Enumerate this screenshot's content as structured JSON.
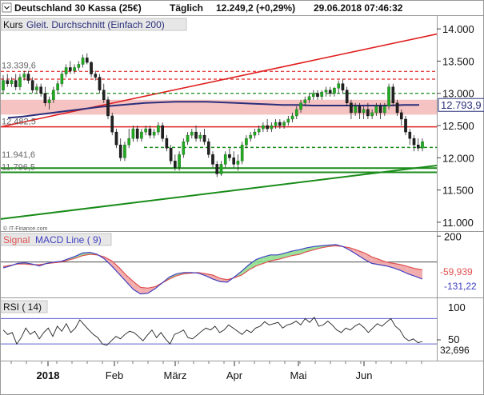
{
  "header": {
    "instrument": "Deutschland 30 Kassa (25€)",
    "interval": "Täglich",
    "quote": "12.249,2 (+0,29%)",
    "datetime": "29.06.2018 07:46:32"
  },
  "legend": {
    "kurs": "Kurs",
    "ma": "Gleit. Durchschnitt (Einfach 200)"
  },
  "watermark": "© IT-Finance.com",
  "colors": {
    "candle_up": "#22aa22",
    "candle_down": "#222222",
    "ma_line": "#2b2f7a",
    "red": "#e02020",
    "green": "#1a8c1a",
    "resistance_band": "#f5b8b8",
    "macd_signal": "#e05050",
    "macd_line": "#4040c0",
    "rsi_line": "#222222",
    "rsi_levels": "#6060d0"
  },
  "chart_data": [
    {
      "type": "candlestick",
      "title": "Deutschland 30 Kassa (25€)",
      "x_labels": [
        "2018",
        "Feb",
        "März",
        "Apr",
        "Mai",
        "Jun"
      ],
      "y_ticks": [
        "14.000",
        "13.500",
        "13.000",
        "12.500",
        "12.000",
        "11.500",
        "11.000"
      ],
      "ylim": [
        10.9,
        14.2
      ],
      "y_unit_note": "thousands of points",
      "moving_average_label": "Gleit. Durchschnitt (Einfach 200)",
      "ma_value_label": "12.793,9",
      "level_labels": [
        "13.339,6",
        "12.482,5",
        "11.941,6",
        "11.796,5"
      ],
      "horizontal_levels": {
        "red_solid": [
          12.48,
          11.8
        ],
        "red_dashed": [
          13.34,
          13.22
        ],
        "green_dashed": [
          13.0,
          12.16
        ],
        "green_solid": [
          11.84,
          11.8
        ],
        "resistance_band": [
          12.67,
          12.9
        ]
      },
      "trendlines": {
        "red_up": [
          [
            0,
            12.48
          ],
          [
            105,
            13.92
          ]
        ],
        "green_up": [
          [
            0,
            11.05
          ],
          [
            105,
            11.88
          ]
        ]
      },
      "candles": [
        {
          "o": 13.05,
          "h": 13.28,
          "c": 13.2,
          "l": 13.0
        },
        {
          "o": 13.2,
          "h": 13.3,
          "c": 13.15,
          "l": 13.1
        },
        {
          "o": 13.15,
          "h": 13.25,
          "c": 13.2,
          "l": 13.1
        },
        {
          "o": 13.2,
          "h": 13.3,
          "c": 13.1,
          "l": 13.05
        },
        {
          "o": 13.1,
          "h": 13.3,
          "c": 13.25,
          "l": 13.05
        },
        {
          "o": 13.25,
          "h": 13.35,
          "c": 13.3,
          "l": 13.2
        },
        {
          "o": 13.3,
          "h": 13.35,
          "c": 13.2,
          "l": 13.15
        },
        {
          "o": 13.2,
          "h": 13.25,
          "c": 13.05,
          "l": 13.0
        },
        {
          "o": 13.05,
          "h": 13.15,
          "c": 13.1,
          "l": 13.0
        },
        {
          "o": 13.1,
          "h": 13.15,
          "c": 13.0,
          "l": 12.95
        },
        {
          "o": 13.0,
          "h": 13.1,
          "c": 12.85,
          "l": 12.8
        },
        {
          "o": 12.85,
          "h": 12.95,
          "c": 12.9,
          "l": 12.75
        },
        {
          "o": 12.9,
          "h": 13.1,
          "c": 13.05,
          "l": 12.85
        },
        {
          "o": 13.05,
          "h": 13.2,
          "c": 13.15,
          "l": 13.0
        },
        {
          "o": 13.15,
          "h": 13.35,
          "c": 13.3,
          "l": 13.1
        },
        {
          "o": 13.3,
          "h": 13.45,
          "c": 13.4,
          "l": 13.25
        },
        {
          "o": 13.4,
          "h": 13.5,
          "c": 13.35,
          "l": 13.3
        },
        {
          "o": 13.35,
          "h": 13.45,
          "c": 13.4,
          "l": 13.3
        },
        {
          "o": 13.4,
          "h": 13.5,
          "c": 13.45,
          "l": 13.35
        },
        {
          "o": 13.45,
          "h": 13.6,
          "c": 13.55,
          "l": 13.4
        },
        {
          "o": 13.55,
          "h": 13.62,
          "c": 13.48,
          "l": 13.45
        },
        {
          "o": 13.48,
          "h": 13.5,
          "c": 13.3,
          "l": 13.25
        },
        {
          "o": 13.3,
          "h": 13.35,
          "c": 13.25,
          "l": 13.2
        },
        {
          "o": 13.25,
          "h": 13.3,
          "c": 13.05,
          "l": 13.0
        },
        {
          "o": 13.05,
          "h": 13.15,
          "c": 12.9,
          "l": 12.85
        },
        {
          "o": 12.9,
          "h": 12.95,
          "c": 12.65,
          "l": 12.6
        },
        {
          "o": 12.65,
          "h": 12.7,
          "c": 12.4,
          "l": 12.35
        },
        {
          "o": 12.4,
          "h": 12.45,
          "c": 12.2,
          "l": 12.15
        },
        {
          "o": 12.2,
          "h": 12.3,
          "c": 12.0,
          "l": 11.95
        },
        {
          "o": 12.0,
          "h": 12.25,
          "c": 12.2,
          "l": 11.95
        },
        {
          "o": 12.2,
          "h": 12.45,
          "c": 12.3,
          "l": 12.15
        },
        {
          "o": 12.3,
          "h": 12.5,
          "c": 12.45,
          "l": 12.25
        },
        {
          "o": 12.45,
          "h": 12.5,
          "c": 12.3,
          "l": 12.25
        },
        {
          "o": 12.3,
          "h": 12.45,
          "c": 12.4,
          "l": 12.25
        },
        {
          "o": 12.4,
          "h": 12.5,
          "c": 12.45,
          "l": 12.35
        },
        {
          "o": 12.45,
          "h": 12.5,
          "c": 12.35,
          "l": 12.3
        },
        {
          "o": 12.35,
          "h": 12.45,
          "c": 12.4,
          "l": 12.3
        },
        {
          "o": 12.4,
          "h": 12.55,
          "c": 12.5,
          "l": 12.35
        },
        {
          "o": 12.5,
          "h": 12.55,
          "c": 12.3,
          "l": 12.25
        },
        {
          "o": 12.3,
          "h": 12.35,
          "c": 12.15,
          "l": 12.1
        },
        {
          "o": 12.15,
          "h": 12.2,
          "c": 11.95,
          "l": 11.9
        },
        {
          "o": 11.95,
          "h": 12.05,
          "c": 11.85,
          "l": 11.8
        },
        {
          "o": 11.85,
          "h": 12.1,
          "c": 12.05,
          "l": 11.8
        },
        {
          "o": 12.05,
          "h": 12.3,
          "c": 12.25,
          "l": 12.0
        },
        {
          "o": 12.25,
          "h": 12.4,
          "c": 12.35,
          "l": 12.2
        },
        {
          "o": 12.35,
          "h": 12.45,
          "c": 12.4,
          "l": 12.3
        },
        {
          "o": 12.4,
          "h": 12.5,
          "c": 12.3,
          "l": 12.25
        },
        {
          "o": 12.3,
          "h": 12.4,
          "c": 12.35,
          "l": 12.25
        },
        {
          "o": 12.35,
          "h": 12.45,
          "c": 12.25,
          "l": 12.2
        },
        {
          "o": 12.25,
          "h": 12.3,
          "c": 12.05,
          "l": 12.0
        },
        {
          "o": 12.05,
          "h": 12.1,
          "c": 11.9,
          "l": 11.85
        },
        {
          "o": 11.9,
          "h": 11.95,
          "c": 11.75,
          "l": 11.7
        },
        {
          "o": 11.75,
          "h": 11.95,
          "c": 11.9,
          "l": 11.72
        },
        {
          "o": 11.9,
          "h": 12.1,
          "c": 12.05,
          "l": 11.85
        },
        {
          "o": 12.05,
          "h": 12.15,
          "c": 12.0,
          "l": 11.95
        },
        {
          "o": 12.0,
          "h": 12.1,
          "c": 11.9,
          "l": 11.85
        },
        {
          "o": 11.9,
          "h": 12.05,
          "c": 11.95,
          "l": 11.8
        },
        {
          "o": 11.95,
          "h": 12.25,
          "c": 12.2,
          "l": 11.9
        },
        {
          "o": 12.2,
          "h": 12.35,
          "c": 12.3,
          "l": 12.15
        },
        {
          "o": 12.3,
          "h": 12.4,
          "c": 12.35,
          "l": 12.25
        },
        {
          "o": 12.35,
          "h": 12.45,
          "c": 12.4,
          "l": 12.3
        },
        {
          "o": 12.4,
          "h": 12.5,
          "c": 12.45,
          "l": 12.35
        },
        {
          "o": 12.45,
          "h": 12.55,
          "c": 12.5,
          "l": 12.4
        },
        {
          "o": 12.5,
          "h": 12.6,
          "c": 12.45,
          "l": 12.4
        },
        {
          "o": 12.45,
          "h": 12.55,
          "c": 12.5,
          "l": 12.4
        },
        {
          "o": 12.5,
          "h": 12.6,
          "c": 12.55,
          "l": 12.45
        },
        {
          "o": 12.55,
          "h": 12.6,
          "c": 12.5,
          "l": 12.45
        },
        {
          "o": 12.5,
          "h": 12.58,
          "c": 12.55,
          "l": 12.45
        },
        {
          "o": 12.55,
          "h": 12.65,
          "c": 12.6,
          "l": 12.5
        },
        {
          "o": 12.6,
          "h": 12.7,
          "c": 12.65,
          "l": 12.55
        },
        {
          "o": 12.65,
          "h": 12.8,
          "c": 12.75,
          "l": 12.6
        },
        {
          "o": 12.75,
          "h": 12.9,
          "c": 12.85,
          "l": 12.7
        },
        {
          "o": 12.85,
          "h": 12.95,
          "c": 12.9,
          "l": 12.8
        },
        {
          "o": 12.9,
          "h": 13.0,
          "c": 12.95,
          "l": 12.85
        },
        {
          "o": 12.95,
          "h": 13.05,
          "c": 13.0,
          "l": 12.9
        },
        {
          "o": 13.0,
          "h": 13.05,
          "c": 12.95,
          "l": 12.9
        },
        {
          "o": 12.95,
          "h": 13.05,
          "c": 13.02,
          "l": 12.9
        },
        {
          "o": 13.02,
          "h": 13.1,
          "c": 13.05,
          "l": 12.95
        },
        {
          "o": 13.05,
          "h": 13.1,
          "c": 13.0,
          "l": 12.95
        },
        {
          "o": 13.0,
          "h": 13.1,
          "c": 13.08,
          "l": 12.95
        },
        {
          "o": 13.08,
          "h": 13.2,
          "c": 13.15,
          "l": 13.0
        },
        {
          "o": 13.15,
          "h": 13.22,
          "c": 13.05,
          "l": 13.0
        },
        {
          "o": 13.05,
          "h": 13.1,
          "c": 12.85,
          "l": 12.8
        },
        {
          "o": 12.85,
          "h": 12.9,
          "c": 12.7,
          "l": 12.6
        },
        {
          "o": 12.7,
          "h": 12.85,
          "c": 12.8,
          "l": 12.65
        },
        {
          "o": 12.8,
          "h": 12.85,
          "c": 12.7,
          "l": 12.6
        },
        {
          "o": 12.7,
          "h": 12.8,
          "c": 12.75,
          "l": 12.6
        },
        {
          "o": 12.75,
          "h": 12.85,
          "c": 12.65,
          "l": 12.6
        },
        {
          "o": 12.65,
          "h": 12.75,
          "c": 12.7,
          "l": 12.6
        },
        {
          "o": 12.7,
          "h": 12.85,
          "c": 12.8,
          "l": 12.65
        },
        {
          "o": 12.8,
          "h": 12.85,
          "c": 12.7,
          "l": 12.6
        },
        {
          "o": 12.7,
          "h": 12.85,
          "c": 12.8,
          "l": 12.65
        },
        {
          "o": 12.8,
          "h": 13.15,
          "c": 13.1,
          "l": 12.75
        },
        {
          "o": 13.1,
          "h": 13.15,
          "c": 12.85,
          "l": 12.8
        },
        {
          "o": 12.85,
          "h": 12.9,
          "c": 12.7,
          "l": 12.65
        },
        {
          "o": 12.7,
          "h": 12.75,
          "c": 12.6,
          "l": 12.5
        },
        {
          "o": 12.6,
          "h": 12.65,
          "c": 12.4,
          "l": 12.35
        },
        {
          "o": 12.4,
          "h": 12.45,
          "c": 12.3,
          "l": 12.2
        },
        {
          "o": 12.3,
          "h": 12.35,
          "c": 12.2,
          "l": 12.1
        },
        {
          "o": 12.2,
          "h": 12.3,
          "c": 12.15,
          "l": 12.1
        },
        {
          "o": 12.15,
          "h": 12.3,
          "c": 12.25,
          "l": 12.1
        }
      ],
      "moving_average": [
        12.62,
        12.64,
        12.67,
        12.7,
        12.73,
        12.76,
        12.79,
        12.81,
        12.83,
        12.85,
        12.86,
        12.87,
        12.87,
        12.87,
        12.86,
        12.85,
        12.84,
        12.83,
        12.82,
        12.82,
        12.81,
        12.81,
        12.81,
        12.81,
        12.81,
        12.81,
        12.82,
        12.82
      ],
      "watermark": "© IT-Finance.com"
    },
    {
      "type": "line",
      "title": "Signal MACD Line ( 9)",
      "y_ticks": [
        "200"
      ],
      "value_labels": [
        "-59,939",
        "-131,22"
      ],
      "series": [
        {
          "name": "Signal",
          "values": [
            -35,
            -25,
            -15,
            -15,
            -20,
            -20,
            -12,
            -5,
            0,
            15,
            30,
            50,
            60,
            55,
            40,
            10,
            -40,
            -100,
            -150,
            -195,
            -200,
            -190,
            -160,
            -130,
            -105,
            -90,
            -85,
            -80,
            -90,
            -100,
            -125,
            -135,
            -120,
            -100,
            -60,
            -30,
            -10,
            10,
            20,
            35,
            50,
            60,
            80,
            95,
            110,
            120,
            125,
            120,
            110,
            90,
            70,
            40,
            20,
            0,
            -10,
            -20,
            -35,
            -50,
            -60
          ]
        },
        {
          "name": "MACD Line",
          "values": [
            -45,
            -30,
            -10,
            -5,
            -15,
            -30,
            -10,
            0,
            5,
            25,
            45,
            70,
            75,
            60,
            25,
            -30,
            -90,
            -150,
            -210,
            -245,
            -240,
            -205,
            -160,
            -115,
            -90,
            -80,
            -80,
            -85,
            -105,
            -130,
            -150,
            -155,
            -115,
            -70,
            -20,
            20,
            40,
            55,
            55,
            70,
            85,
            95,
            110,
            120,
            125,
            130,
            135,
            120,
            90,
            55,
            20,
            -10,
            -20,
            -30,
            -45,
            -65,
            -90,
            -110,
            -131
          ]
        }
      ]
    },
    {
      "type": "line",
      "title": "RSI ( 14)",
      "y_ticks": [
        "100",
        "50"
      ],
      "value_label": "32,696",
      "levels": [
        70,
        30
      ],
      "series": [
        {
          "name": "RSI",
          "values": [
            52,
            45,
            48,
            30,
            40,
            55,
            45,
            50,
            38,
            48,
            55,
            42,
            58,
            50,
            62,
            48,
            55,
            68,
            60,
            52,
            45,
            40,
            30,
            28,
            35,
            42,
            38,
            45,
            50,
            48,
            42,
            35,
            44,
            52,
            40,
            48,
            38,
            30,
            45,
            48,
            52,
            40,
            38,
            44,
            50,
            55,
            52,
            58,
            48,
            52,
            60,
            55,
            50,
            45,
            52,
            48,
            55,
            58,
            65,
            60,
            62,
            64,
            55,
            60,
            62,
            66,
            60,
            70,
            64,
            72,
            58,
            60,
            66,
            60,
            52,
            48,
            55,
            52,
            58,
            62,
            56,
            48,
            55,
            62,
            58,
            64,
            70,
            58,
            52,
            40,
            35,
            38,
            32,
            34
          ]
        }
      ]
    }
  ]
}
